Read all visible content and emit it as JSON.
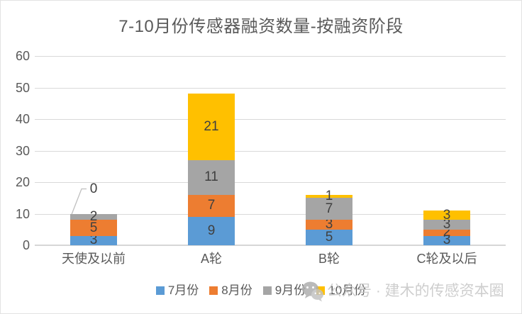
{
  "chart_data": {
    "type": "bar",
    "stacked": true,
    "title": "7-10月份传感器融资数量-按融资阶段",
    "categories": [
      "天使及以前",
      "A轮",
      "B轮",
      "C轮及以后"
    ],
    "series": [
      {
        "name": "7月份",
        "color": "#5B9BD5",
        "values": [
          3,
          9,
          5,
          3
        ]
      },
      {
        "name": "8月份",
        "color": "#ED7D31",
        "values": [
          5,
          7,
          3,
          2
        ]
      },
      {
        "name": "9月份",
        "color": "#A5A5A5",
        "values": [
          2,
          11,
          7,
          3
        ]
      },
      {
        "name": "10月份",
        "color": "#FFC000",
        "values": [
          0,
          21,
          1,
          3
        ]
      }
    ],
    "totals": [
      10,
      48,
      16,
      11
    ],
    "ylim": [
      0,
      60
    ],
    "yticks": [
      0,
      10,
      20,
      30,
      40,
      50,
      60
    ],
    "grid": true,
    "legend_position": "bottom",
    "data_labels": true,
    "zero_value_callout": {
      "category": "天使及以前",
      "series": "10月份",
      "label": "0"
    }
  },
  "watermark": {
    "logo_icon": "wechat-logo-icon",
    "text": "公众号 · 建木的传感资本圈"
  },
  "colors": {
    "title_text": "#595959",
    "axis_text": "#595959",
    "data_label_text": "#404040",
    "gridline": "#D9D9D9",
    "watermark_text": "#C6C6C6",
    "background": "#FFFFFF"
  }
}
